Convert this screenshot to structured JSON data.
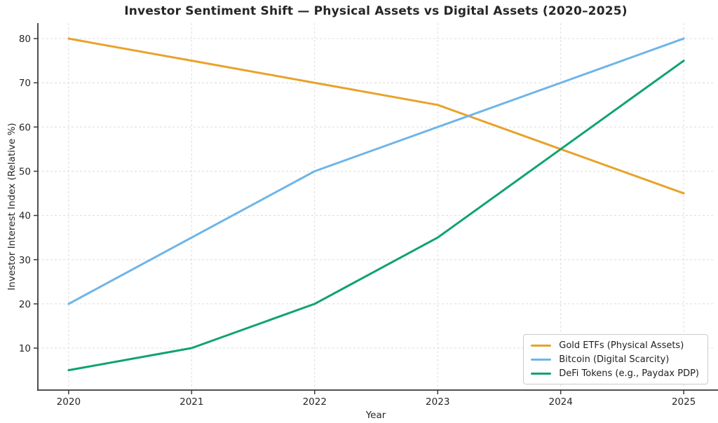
{
  "chart_data": {
    "type": "line",
    "title": "Investor Sentiment Shift — Physical Assets vs Digital Assets (2020–2025)",
    "xlabel": "Year",
    "ylabel": "Investor Interest Index (Relative %)",
    "x": [
      2020,
      2021,
      2022,
      2023,
      2024,
      2025
    ],
    "series": [
      {
        "name": "Gold ETFs (Physical Assets)",
        "color": "#E8A22A",
        "values": [
          80,
          75,
          70,
          65,
          55,
          45
        ]
      },
      {
        "name": "Bitcoin (Digital Scarcity)",
        "color": "#6EB5E8",
        "values": [
          20,
          35,
          50,
          60,
          70,
          80
        ]
      },
      {
        "name": "DeFi Tokens (e.g., Paydax PDP)",
        "color": "#0FA36E",
        "values": [
          5,
          10,
          20,
          35,
          55,
          75
        ]
      }
    ],
    "yticks": [
      10,
      20,
      30,
      40,
      50,
      60,
      70,
      80
    ],
    "xlim": [
      2019.75,
      2025.25
    ],
    "ylim": [
      0.5,
      83.5
    ],
    "grid": true,
    "grid_style": "dashed",
    "legend_position": "lower right",
    "colors": {
      "grid": "#DCDCDC",
      "spine": "#3A3A3A",
      "tick_label": "#262626",
      "title": "#262626",
      "legend_border": "#CCCCCC",
      "legend_bg": "#FFFFFF"
    }
  }
}
